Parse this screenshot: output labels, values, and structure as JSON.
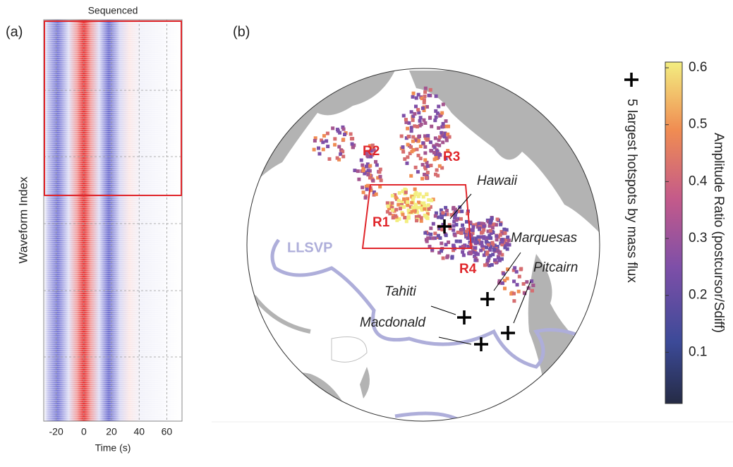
{
  "panel_a": {
    "label": "(a)",
    "title": "Sequenced",
    "xlabel": "Time (s)",
    "ylabel": "Waveform Index",
    "xlim": [
      -29,
      71
    ],
    "xticks": [
      -20,
      0,
      20,
      40,
      60
    ]
  },
  "panel_b": {
    "label": "(b)",
    "regions": [
      "R1",
      "R2",
      "R3",
      "R4"
    ],
    "hotspots": [
      "Hawaii",
      "Marquesas",
      "Tahiti",
      "Pitcairn",
      "Macdonald"
    ],
    "llsvp": "LLSVP",
    "legend": "5 largest hotspots by mass flux",
    "colorbar": {
      "label": "Amplitude Ratio (postcursor/Sdiff)",
      "lim": [
        0.01,
        0.61
      ],
      "ticks": [
        0.1,
        0.2,
        0.3,
        0.4,
        0.5,
        0.6
      ]
    }
  }
}
